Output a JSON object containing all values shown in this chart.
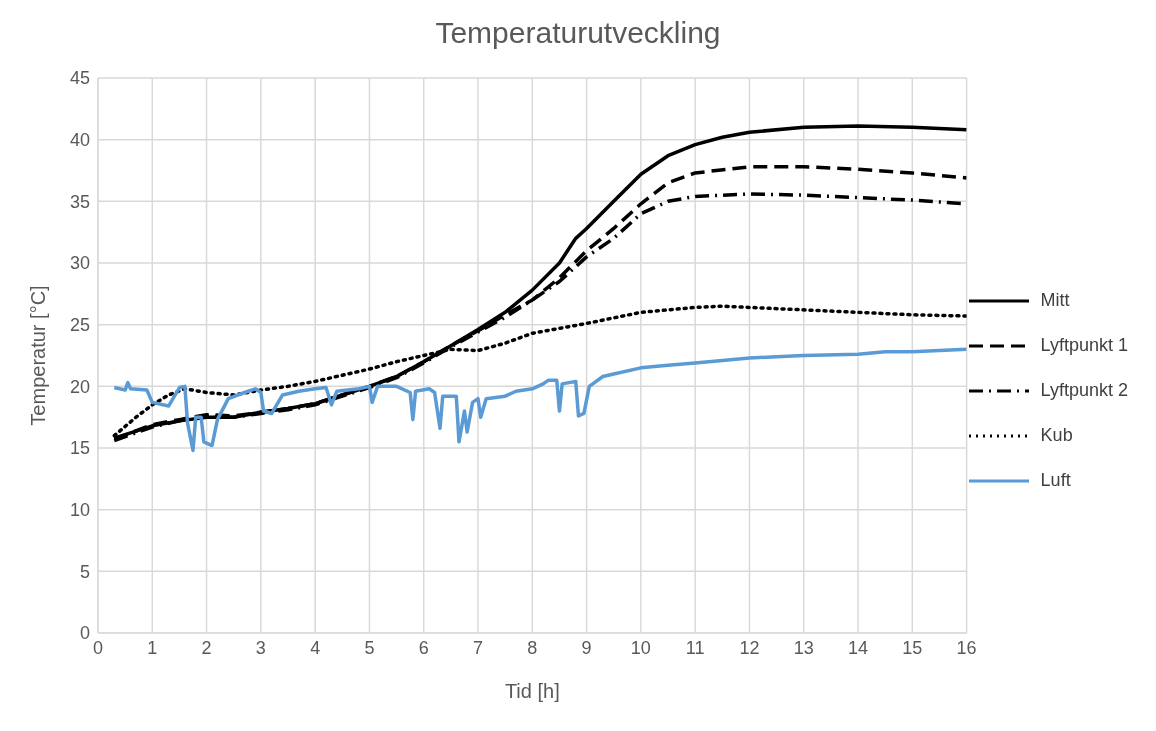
{
  "chart_data": {
    "type": "line",
    "title": "Temperaturutveckling",
    "xlabel": "Tid [h]",
    "ylabel": "Temperatur [°C]",
    "xlim": [
      0,
      16
    ],
    "xticks": [
      0,
      1,
      2,
      3,
      4,
      5,
      6,
      7,
      8,
      9,
      10,
      11,
      12,
      13,
      14,
      15,
      16
    ],
    "ylim": [
      0,
      45
    ],
    "yticks": [
      0,
      5,
      10,
      15,
      20,
      25,
      30,
      35,
      40,
      45
    ],
    "grid": true,
    "legend": "right",
    "marker": "none",
    "series": [
      {
        "name": "Mitt",
        "color": "#000000",
        "line_style": "solid",
        "x": [
          0.3,
          1,
          1.5,
          2,
          2.5,
          3,
          3.5,
          4,
          4.5,
          5,
          5.5,
          6,
          6.5,
          7,
          7.5,
          8,
          8.5,
          8.8,
          9,
          9.5,
          10,
          10.5,
          11,
          11.5,
          12,
          13,
          14,
          15,
          16
        ],
        "values": [
          15.8,
          16.8,
          17.2,
          17.5,
          17.5,
          17.9,
          18.2,
          18.6,
          19.3,
          20.0,
          20.8,
          22.0,
          23.3,
          24.6,
          26.0,
          27.8,
          30.0,
          32.0,
          32.8,
          35.0,
          37.2,
          38.7,
          39.6,
          40.2,
          40.6,
          41.0,
          41.1,
          41.0,
          40.8
        ]
      },
      {
        "name": "Lyftpunkt 1",
        "color": "#000000",
        "line_style": "dashed",
        "x": [
          0.3,
          1,
          1.5,
          2,
          2.5,
          3,
          3.5,
          4,
          4.5,
          5,
          5.5,
          6,
          6.5,
          7,
          7.5,
          8,
          8.5,
          9,
          9.5,
          10,
          10.5,
          11,
          12,
          13,
          14,
          15,
          16
        ],
        "values": [
          15.7,
          16.9,
          17.3,
          17.7,
          17.6,
          17.9,
          18.2,
          18.6,
          19.3,
          20.0,
          20.8,
          22.0,
          23.3,
          24.5,
          25.8,
          27.0,
          28.8,
          31.0,
          32.8,
          34.8,
          36.5,
          37.3,
          37.8,
          37.8,
          37.6,
          37.3,
          36.9
        ]
      },
      {
        "name": "Lyftpunkt 2",
        "color": "#000000",
        "line_style": "dashdot",
        "x": [
          0.3,
          1,
          1.5,
          2,
          2.5,
          3,
          3.5,
          4,
          4.5,
          5,
          5.5,
          6,
          6.5,
          7,
          7.5,
          8,
          8.5,
          9,
          9.5,
          10,
          10.5,
          11,
          12,
          13,
          14,
          15,
          16
        ],
        "values": [
          15.6,
          16.7,
          17.2,
          17.6,
          17.5,
          17.8,
          18.1,
          18.5,
          19.2,
          19.9,
          20.7,
          21.9,
          23.2,
          24.4,
          25.6,
          27.0,
          28.5,
          30.5,
          32.0,
          34.0,
          35.0,
          35.4,
          35.6,
          35.5,
          35.3,
          35.1,
          34.8
        ]
      },
      {
        "name": "Kub",
        "color": "#000000",
        "line_style": "dotted",
        "x": [
          0.3,
          0.7,
          1,
          1.3,
          1.6,
          2,
          2.5,
          3,
          3.5,
          4,
          4.5,
          5,
          5.5,
          6,
          6.5,
          7,
          7.5,
          8,
          9,
          10,
          11,
          11.5,
          12,
          13,
          14,
          15,
          16
        ],
        "values": [
          16.0,
          17.5,
          18.5,
          19.3,
          19.8,
          19.5,
          19.3,
          19.7,
          20.0,
          20.4,
          20.9,
          21.4,
          22.0,
          22.5,
          23.0,
          22.9,
          23.5,
          24.3,
          25.1,
          26.0,
          26.4,
          26.5,
          26.4,
          26.2,
          26.0,
          25.8,
          25.7
        ]
      },
      {
        "name": "Luft",
        "color": "#5b9bd5",
        "line_style": "solid",
        "x": [
          0.3,
          0.5,
          0.55,
          0.6,
          0.9,
          1,
          1.3,
          1.5,
          1.6,
          1.65,
          1.75,
          1.8,
          1.9,
          1.95,
          2.1,
          2.2,
          2.4,
          2.7,
          2.9,
          3.0,
          3.05,
          3.2,
          3.4,
          3.7,
          4,
          4.2,
          4.3,
          4.4,
          4.8,
          5.0,
          5.05,
          5.15,
          5.5,
          5.75,
          5.8,
          5.85,
          6.1,
          6.2,
          6.3,
          6.35,
          6.6,
          6.65,
          6.75,
          6.8,
          6.9,
          7.0,
          7.05,
          7.15,
          7.5,
          7.7,
          8,
          8.2,
          8.3,
          8.45,
          8.5,
          8.55,
          8.8,
          8.85,
          8.95,
          9.05,
          9.3,
          9.5,
          10,
          10.5,
          11,
          11.5,
          12,
          12.5,
          13,
          14,
          14.5,
          15,
          15.5,
          16
        ],
        "values": [
          19.9,
          19.7,
          20.3,
          19.8,
          19.7,
          18.7,
          18.4,
          19.9,
          20.0,
          17.0,
          14.8,
          17.5,
          17.5,
          15.5,
          15.2,
          17.3,
          19.0,
          19.5,
          19.8,
          19.5,
          18.0,
          17.8,
          19.3,
          19.6,
          19.8,
          19.9,
          18.5,
          19.6,
          19.8,
          20.0,
          18.7,
          20.0,
          20.0,
          19.5,
          17.3,
          19.6,
          19.8,
          19.5,
          16.6,
          19.2,
          19.2,
          15.5,
          18.0,
          16.3,
          18.7,
          19.0,
          17.5,
          19.0,
          19.2,
          19.6,
          19.8,
          20.2,
          20.5,
          20.5,
          18.0,
          20.2,
          20.4,
          17.6,
          17.8,
          20.0,
          20.8,
          21.0,
          21.5,
          21.7,
          21.9,
          22.1,
          22.3,
          22.4,
          22.5,
          22.6,
          22.8,
          22.8,
          22.9,
          23.0
        ]
      }
    ]
  }
}
